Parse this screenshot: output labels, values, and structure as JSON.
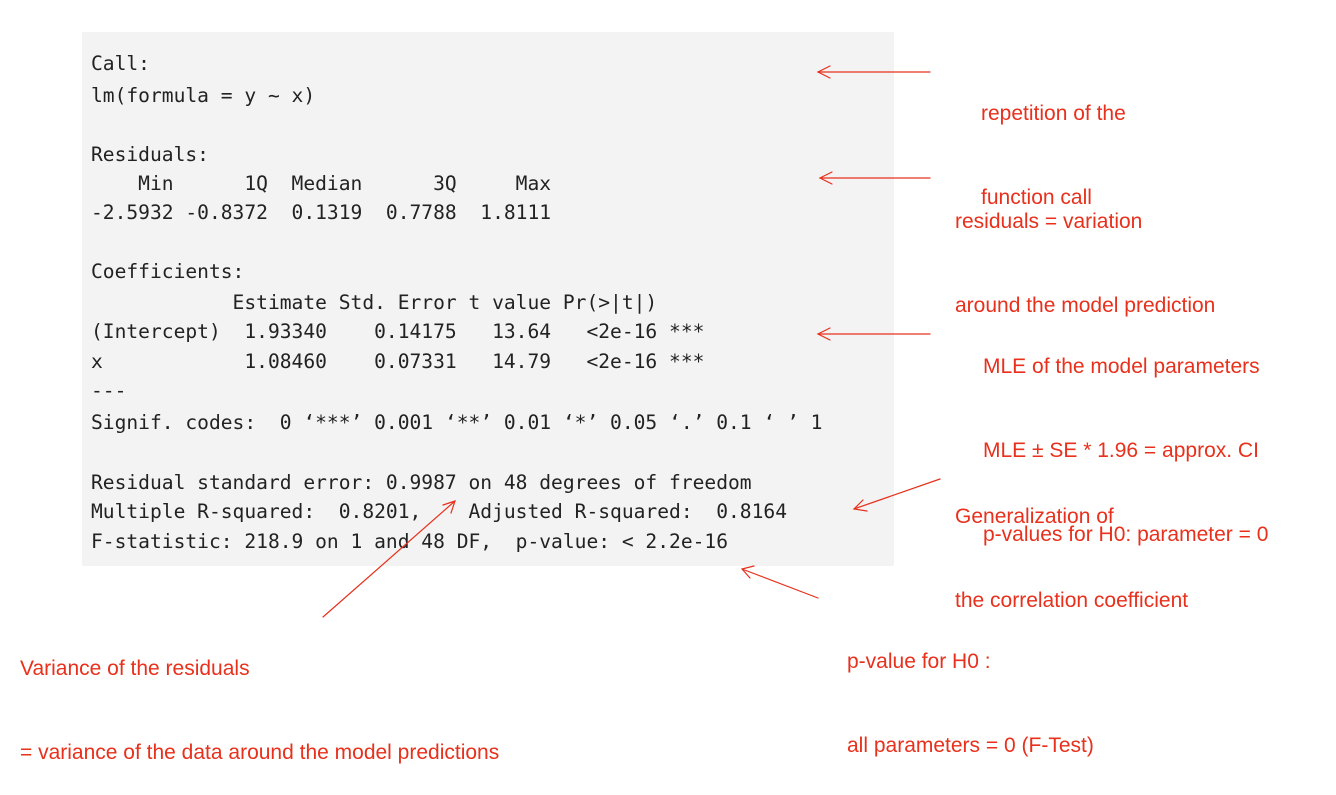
{
  "console": {
    "lines": [
      "Call:",
      "lm(formula = y ~ x)",
      "Residuals:",
      "    Min      1Q  Median      3Q     Max ",
      "-2.5932 -0.8372  0.1319  0.7788  1.8111 ",
      "Coefficients:",
      "            Estimate Std. Error t value Pr(>|t|)    ",
      "(Intercept)  1.93340    0.14175   13.64   <2e-16 ***",
      "x            1.08460    0.07331   14.79   <2e-16 ***",
      "---",
      "Signif. codes:  0 ‘***’ 0.001 ‘**’ 0.01 ‘*’ 0.05 ‘.’ 0.1 ‘ ’ 1",
      "Residual standard error: 0.9987 on 48 degrees of freedom",
      "Multiple R-squared:  0.8201,    Adjusted R-squared:  0.8164 ",
      "F-statistic: 218.9 on 1 and 48 DF,  p-value: < 2.2e-16"
    ]
  },
  "annotations": {
    "call": [
      "repetition of the",
      "function call"
    ],
    "residuals": [
      "residuals = variation",
      "around the model prediction"
    ],
    "coefficients": [
      "MLE of the model parameters",
      "MLE ± SE * 1.96 = approx. CI",
      "p-values for H0: parameter = 0"
    ],
    "r_squared": [
      "Generalization of",
      "the correlation coefficient"
    ],
    "residual_se": [
      "Variance of the residuals",
      "= variance of the data around the model predictions"
    ],
    "f_test": [
      "p-value for H0 :",
      "all parameters = 0 (F-Test)"
    ]
  },
  "colors": {
    "annotation": "#e8301c",
    "console_bg": "#f3f3f3",
    "console_text": "#222222"
  }
}
